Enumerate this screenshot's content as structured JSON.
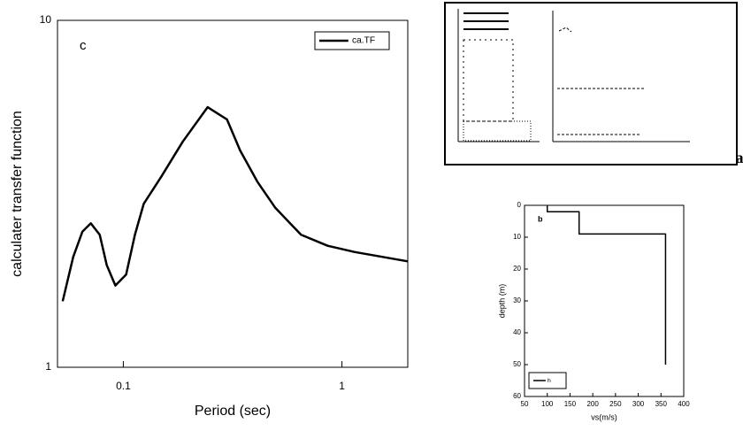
{
  "chart_data": [
    {
      "type": "line",
      "panel_label": "c",
      "xlabel": "Period (sec)",
      "ylabel": "calculater transfer function",
      "xlog": true,
      "ylog": true,
      "xlim": [
        0.05,
        2
      ],
      "ylim": [
        1,
        10
      ],
      "xticks": [
        0.1,
        1
      ],
      "yticks": [
        1,
        10
      ],
      "legend": "upper right",
      "x": [
        0.0528,
        0.059,
        0.065,
        0.071,
        0.078,
        0.084,
        0.092,
        0.103,
        0.113,
        0.124,
        0.149,
        0.187,
        0.243,
        0.298,
        0.342,
        0.41,
        0.496,
        0.65,
        0.86,
        1.14,
        2
      ],
      "series": [
        {
          "name": "ca.TF",
          "color": "#000000",
          "values": [
            1.55,
            2.08,
            2.46,
            2.6,
            2.41,
            1.97,
            1.72,
            1.85,
            2.41,
            2.96,
            3.54,
            4.47,
            5.62,
            5.18,
            4.22,
            3.43,
            2.88,
            2.41,
            2.24,
            2.15,
            2.02
          ]
        }
      ]
    },
    {
      "type": "line",
      "panel_label": "b",
      "xlabel": "vs(m/s)",
      "ylabel": "depth (m)",
      "xlim": [
        50,
        400
      ],
      "ylim": [
        0,
        60
      ],
      "yinverted": true,
      "xticks": [
        50,
        100,
        150,
        200,
        250,
        300,
        350,
        400
      ],
      "yticks": [
        0,
        10,
        20,
        30,
        40,
        50,
        60
      ],
      "legend": "lower left",
      "x": [
        100,
        100,
        170,
        170,
        360,
        360
      ],
      "series": [
        {
          "name": "h",
          "color": "#000000",
          "values": [
            0,
            2,
            2,
            9,
            9,
            50
          ]
        }
      ]
    }
  ],
  "panel_a": {
    "label": "a"
  }
}
